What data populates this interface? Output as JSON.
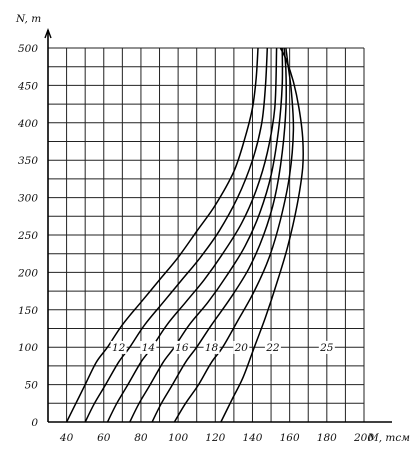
{
  "chart_data": {
    "type": "line",
    "title": "",
    "xlabel": "M, тсм",
    "ylabel": "N, т",
    "xlim": [
      30,
      200
    ],
    "ylim": [
      0,
      500
    ],
    "grid": true,
    "legend": "none",
    "x_ticks": [
      "40",
      "60",
      "80",
      "100",
      "120",
      "140",
      "160",
      "180",
      "200"
    ],
    "y_ticks": [
      "0",
      "50",
      "100",
      "150",
      "200",
      "250",
      "300",
      "350",
      "400",
      "450",
      "500"
    ],
    "series": [
      {
        "name": "12",
        "label_at": [
          68,
          95
        ],
        "points": [
          [
            40,
            0
          ],
          [
            45,
            25
          ],
          [
            50,
            50
          ],
          [
            56,
            80
          ],
          [
            62,
            100
          ],
          [
            70,
            130
          ],
          [
            80,
            160
          ],
          [
            90,
            190
          ],
          [
            100,
            220
          ],
          [
            110,
            255
          ],
          [
            120,
            290
          ],
          [
            130,
            335
          ],
          [
            136,
            380
          ],
          [
            140,
            420
          ],
          [
            142,
            460
          ],
          [
            143,
            500
          ]
        ]
      },
      {
        "name": "14",
        "label_at": [
          84,
          95
        ],
        "points": [
          [
            50,
            0
          ],
          [
            55,
            25
          ],
          [
            61,
            50
          ],
          [
            68,
            80
          ],
          [
            74,
            100
          ],
          [
            82,
            130
          ],
          [
            92,
            160
          ],
          [
            102,
            190
          ],
          [
            112,
            220
          ],
          [
            122,
            255
          ],
          [
            132,
            300
          ],
          [
            140,
            350
          ],
          [
            145,
            400
          ],
          [
            147,
            450
          ],
          [
            148,
            500
          ]
        ]
      },
      {
        "name": "16",
        "label_at": [
          102,
          95
        ],
        "points": [
          [
            62,
            0
          ],
          [
            67,
            25
          ],
          [
            73,
            50
          ],
          [
            80,
            80
          ],
          [
            86,
            100
          ],
          [
            94,
            130
          ],
          [
            104,
            160
          ],
          [
            114,
            190
          ],
          [
            124,
            225
          ],
          [
            134,
            265
          ],
          [
            142,
            310
          ],
          [
            148,
            360
          ],
          [
            152,
            420
          ],
          [
            153,
            500
          ]
        ]
      },
      {
        "name": "18",
        "label_at": [
          118,
          95
        ],
        "points": [
          [
            74,
            0
          ],
          [
            79,
            25
          ],
          [
            85,
            50
          ],
          [
            92,
            80
          ],
          [
            98,
            100
          ],
          [
            106,
            130
          ],
          [
            116,
            160
          ],
          [
            126,
            195
          ],
          [
            136,
            235
          ],
          [
            144,
            280
          ],
          [
            150,
            330
          ],
          [
            154,
            390
          ],
          [
            156,
            450
          ],
          [
            156,
            500
          ]
        ]
      },
      {
        "name": "20",
        "label_at": [
          134,
          95
        ],
        "points": [
          [
            86,
            0
          ],
          [
            91,
            25
          ],
          [
            97,
            50
          ],
          [
            104,
            80
          ],
          [
            110,
            100
          ],
          [
            118,
            130
          ],
          [
            128,
            165
          ],
          [
            138,
            205
          ],
          [
            146,
            250
          ],
          [
            152,
            300
          ],
          [
            156,
            360
          ],
          [
            158,
            420
          ],
          [
            158,
            470
          ],
          [
            157,
            500
          ]
        ]
      },
      {
        "name": "22",
        "label_at": [
          151,
          95
        ],
        "points": [
          [
            98,
            0
          ],
          [
            104,
            25
          ],
          [
            111,
            50
          ],
          [
            118,
            80
          ],
          [
            124,
            100
          ],
          [
            132,
            135
          ],
          [
            141,
            175
          ],
          [
            149,
            220
          ],
          [
            155,
            270
          ],
          [
            160,
            330
          ],
          [
            162,
            390
          ],
          [
            161,
            440
          ],
          [
            159,
            480
          ],
          [
            158,
            500
          ]
        ]
      },
      {
        "name": "25",
        "label_at": [
          180,
          95
        ],
        "points": [
          [
            123,
            0
          ],
          [
            129,
            30
          ],
          [
            135,
            60
          ],
          [
            141,
            100
          ],
          [
            147,
            140
          ],
          [
            153,
            185
          ],
          [
            159,
            235
          ],
          [
            164,
            290
          ],
          [
            167,
            340
          ],
          [
            167,
            380
          ],
          [
            165,
            420
          ],
          [
            162,
            455
          ],
          [
            158,
            485
          ],
          [
            155,
            500
          ]
        ]
      }
    ]
  }
}
